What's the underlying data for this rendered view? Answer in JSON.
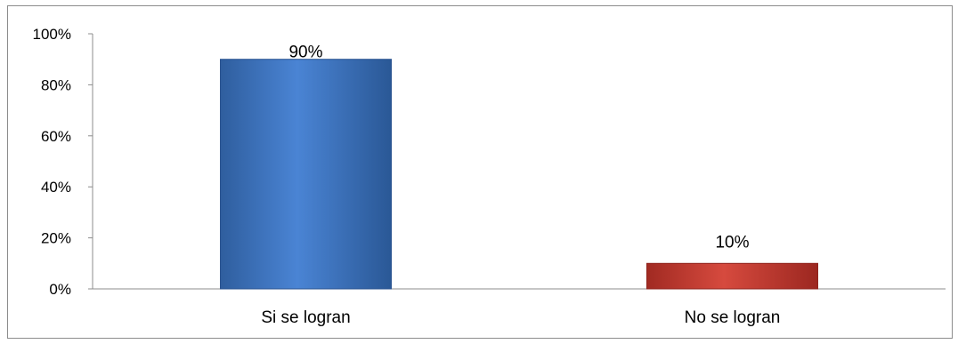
{
  "chart_data": {
    "type": "bar",
    "categories": [
      "Si se logran",
      "No se logran"
    ],
    "values": [
      90,
      10
    ],
    "data_labels": [
      "90%",
      "10%"
    ],
    "ylim": [
      0,
      100
    ],
    "yticks": [
      0,
      20,
      40,
      60,
      80,
      100
    ],
    "ytick_labels": [
      "0%",
      "20%",
      "40%",
      "60%",
      "80%",
      "100%"
    ],
    "title": "",
    "xlabel": "",
    "ylabel": "",
    "grid": false,
    "legend": "none",
    "colors": [
      "#4a7cc8",
      "#c0392b"
    ]
  }
}
